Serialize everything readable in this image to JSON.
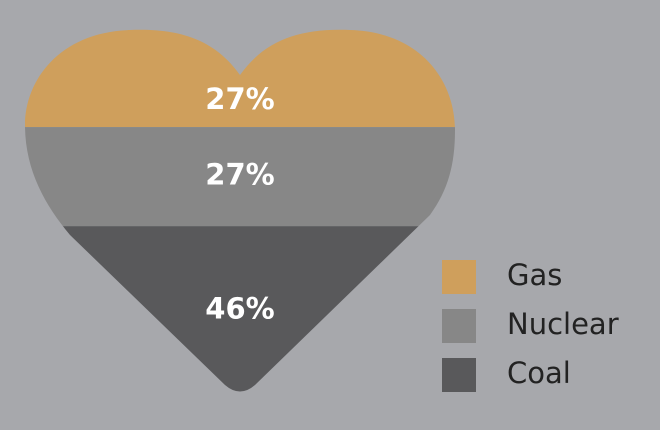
{
  "chart_data": {
    "type": "heart",
    "categories": [
      "Gas",
      "Nuclear",
      "Coal"
    ],
    "values": [
      27,
      27,
      46
    ],
    "value_labels": [
      "27%",
      "27%",
      "46%"
    ],
    "colors": [
      "#cf9f5c",
      "#878787",
      "#59595b"
    ],
    "legend": "bottom-right"
  }
}
